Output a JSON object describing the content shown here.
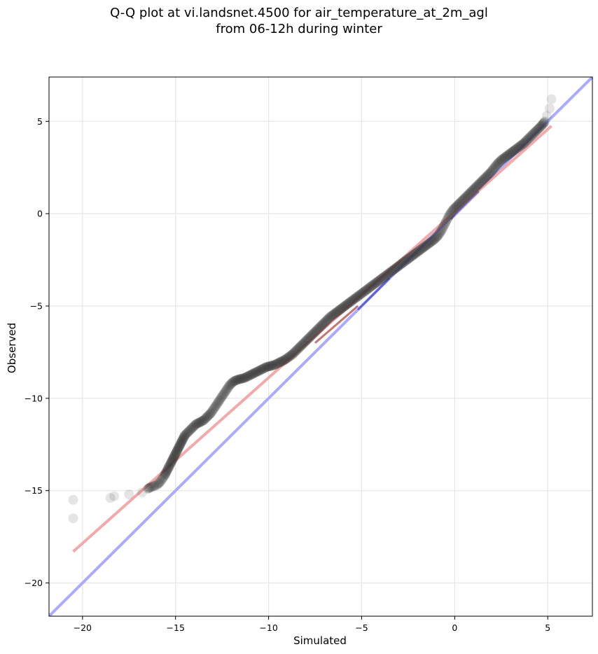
{
  "chart_data": {
    "type": "scatter",
    "title_line1": "Q-Q plot at vi.landsnet.4500 for air_temperature_at_2m_agl",
    "title_line2": "from 06-12h during winter",
    "xlabel": "Simulated",
    "ylabel": "Observed",
    "xlim": [
      -21.8,
      7.4
    ],
    "ylim": [
      -21.8,
      7.4
    ],
    "xticks": [
      -20,
      -15,
      -10,
      -5,
      0,
      5
    ],
    "yticks": [
      -20,
      -15,
      -10,
      -5,
      0,
      5
    ],
    "xtick_labels": [
      "−20",
      "−15",
      "−10",
      "−5",
      "0",
      "5"
    ],
    "ytick_labels": [
      "−20",
      "−15",
      "−10",
      "−5",
      "0",
      "5"
    ],
    "grid": true,
    "colors": {
      "points": "#333333",
      "identity_line": "#aaaaff",
      "fit_line": "#f4a9a9",
      "core_blue": "#3030c0",
      "core_red": "#9a1a1a"
    },
    "identity_line": {
      "x": [
        -21.8,
        7.4
      ],
      "y": [
        -21.8,
        7.4
      ]
    },
    "fit_line": {
      "x": [
        -20.5,
        5.2
      ],
      "y": [
        -18.3,
        4.75
      ]
    },
    "points_x": [
      -20.5,
      -20.5,
      -18.5,
      -18.3,
      -17.5,
      -16.8,
      -16.5,
      -16.3,
      -16.0,
      -15.8,
      -15.6,
      -15.5,
      -15.4,
      -15.3,
      -15.2,
      -15.1,
      -15.0,
      -14.9,
      -14.8,
      -14.7,
      -14.6,
      -14.5,
      -14.3,
      -14.1,
      -13.9,
      -13.7,
      -13.5,
      -13.3,
      -13.1,
      -12.9,
      -12.7,
      -12.5,
      -12.3,
      -12.1,
      -11.9,
      -11.7,
      -11.5,
      -11.3,
      -11.1,
      -10.9,
      -10.7,
      -10.5,
      -10.3,
      -10.1,
      -9.9,
      -9.7,
      -9.5,
      -9.3,
      -9.1,
      -8.9,
      -8.7,
      -8.5,
      -8.3,
      -8.1,
      -7.9,
      -7.7,
      -7.5,
      -7.3,
      -7.1,
      -6.9,
      -6.7,
      -6.5,
      -6.3,
      -6.1,
      -5.9,
      -5.7,
      -5.5,
      -5.3,
      -5.1,
      -4.9,
      -4.7,
      -4.5,
      -4.3,
      -4.1,
      -3.9,
      -3.7,
      -3.5,
      -3.3,
      -3.1,
      -2.9,
      -2.7,
      -2.5,
      -2.3,
      -2.1,
      -1.9,
      -1.7,
      -1.5,
      -1.3,
      -1.1,
      -0.9,
      -0.7,
      -0.5,
      -0.3,
      -0.1,
      0.1,
      0.3,
      0.5,
      0.7,
      0.9,
      1.1,
      1.3,
      1.5,
      1.7,
      1.9,
      2.1,
      2.3,
      2.5,
      2.7,
      2.9,
      3.1,
      3.3,
      3.5,
      3.7,
      3.9,
      4.1,
      4.3,
      4.5,
      4.7,
      4.85,
      4.95,
      5.1,
      5.2
    ],
    "points_y": [
      -16.5,
      -15.5,
      -15.4,
      -15.3,
      -15.2,
      -15.1,
      -14.9,
      -14.8,
      -14.7,
      -14.5,
      -14.2,
      -14.0,
      -13.8,
      -13.6,
      -13.4,
      -13.2,
      -13.0,
      -12.8,
      -12.6,
      -12.4,
      -12.2,
      -12.0,
      -11.8,
      -11.6,
      -11.4,
      -11.3,
      -11.2,
      -11.0,
      -10.8,
      -10.5,
      -10.2,
      -9.9,
      -9.6,
      -9.3,
      -9.1,
      -9.0,
      -8.95,
      -8.9,
      -8.8,
      -8.7,
      -8.6,
      -8.5,
      -8.4,
      -8.3,
      -8.25,
      -8.2,
      -8.1,
      -8.0,
      -7.9,
      -7.75,
      -7.6,
      -7.4,
      -7.2,
      -7.0,
      -6.8,
      -6.6,
      -6.4,
      -6.2,
      -6.0,
      -5.8,
      -5.6,
      -5.45,
      -5.3,
      -5.15,
      -5.0,
      -4.85,
      -4.7,
      -4.55,
      -4.4,
      -4.25,
      -4.1,
      -3.95,
      -3.8,
      -3.65,
      -3.5,
      -3.35,
      -3.2,
      -3.05,
      -2.9,
      -2.75,
      -2.6,
      -2.45,
      -2.3,
      -2.15,
      -2.0,
      -1.85,
      -1.7,
      -1.55,
      -1.4,
      -1.2,
      -0.9,
      -0.5,
      -0.1,
      0.2,
      0.4,
      0.6,
      0.8,
      1.0,
      1.2,
      1.4,
      1.6,
      1.8,
      2.0,
      2.2,
      2.45,
      2.7,
      2.9,
      3.05,
      3.2,
      3.35,
      3.5,
      3.65,
      3.8,
      4.0,
      4.2,
      4.4,
      4.6,
      4.8,
      5.0,
      5.3,
      5.7,
      6.2
    ]
  }
}
